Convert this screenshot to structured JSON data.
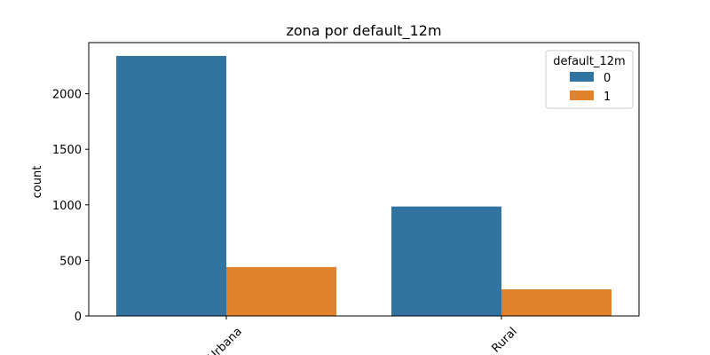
{
  "chart_data": {
    "type": "bar",
    "title": "zona por default_12m",
    "xlabel": "",
    "ylabel": "count",
    "categories": [
      "Urbana",
      "Rural"
    ],
    "series": [
      {
        "name": "0",
        "values": [
          2340,
          985
        ],
        "color": "#3274a1"
      },
      {
        "name": "1",
        "values": [
          440,
          240
        ],
        "color": "#e1812c"
      }
    ],
    "ylim": [
      0,
      2500
    ],
    "yticks": [
      0,
      500,
      1000,
      1500,
      2000
    ],
    "legend": {
      "title": "default_12m",
      "placement": "top-right"
    },
    "grid": false
  }
}
